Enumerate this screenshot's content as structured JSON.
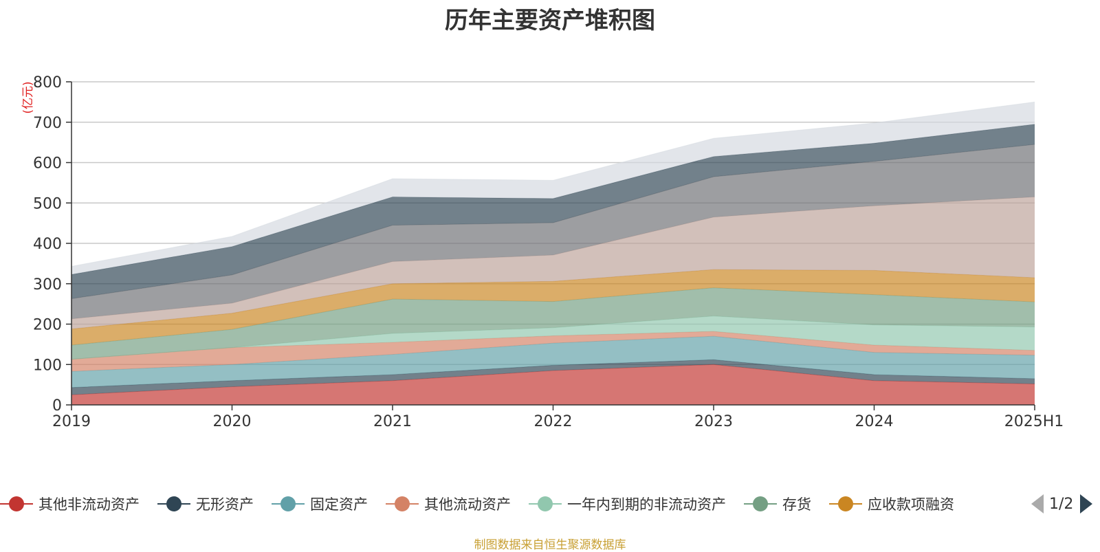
{
  "chart_data": {
    "type": "area",
    "stacked": true,
    "title": "历年主要资产堆积图",
    "ylabel": "(亿元)",
    "xlabel": "",
    "categories": [
      "2019",
      "2020",
      "2021",
      "2022",
      "2023",
      "2024",
      "2025H1"
    ],
    "y_ticks": [
      "0",
      "100",
      "200",
      "300",
      "400",
      "500",
      "600",
      "700",
      "800"
    ],
    "ylim": [
      0,
      800
    ],
    "grid": true,
    "series": [
      {
        "name": "其他非流动资产",
        "color": "#c23531",
        "values": [
          25,
          45,
          60,
          85,
          100,
          60,
          52
        ]
      },
      {
        "name": "无形资产",
        "color": "#2f4554",
        "values": [
          18,
          15,
          15,
          13,
          12,
          15,
          13
        ]
      },
      {
        "name": "固定资产",
        "color": "#61a0a8",
        "values": [
          40,
          40,
          50,
          55,
          58,
          55,
          58
        ]
      },
      {
        "name": "其他流动资产",
        "color": "#d48265",
        "values": [
          30,
          42,
          30,
          18,
          12,
          18,
          12
        ]
      },
      {
        "name": "一年内到期的非流动资产",
        "color": "#91c7ae",
        "values": [
          0,
          0,
          22,
          20,
          38,
          50,
          58
        ]
      },
      {
        "name": "存货",
        "color": "#749f83",
        "values": [
          35,
          45,
          85,
          65,
          70,
          75,
          62
        ]
      },
      {
        "name": "应收款项融资",
        "color": "#ca8622",
        "values": [
          40,
          40,
          38,
          50,
          45,
          60,
          60
        ]
      },
      {
        "name": "",
        "color": "#bda29a",
        "values": [
          25,
          25,
          55,
          65,
          130,
          160,
          200
        ]
      },
      {
        "name": "",
        "color": "#6e7074",
        "values": [
          50,
          70,
          90,
          80,
          100,
          110,
          130
        ]
      },
      {
        "name": "",
        "color": "#2f4554",
        "values": [
          60,
          70,
          70,
          60,
          50,
          45,
          50
        ]
      },
      {
        "name": "",
        "color": "#d4d9e0",
        "values": [
          20,
          25,
          45,
          45,
          45,
          50,
          55
        ]
      }
    ]
  },
  "legend": {
    "items": [
      {
        "label": "其他非流动资产",
        "color": "#c23531"
      },
      {
        "label": "无形资产",
        "color": "#2f4554"
      },
      {
        "label": "固定资产",
        "color": "#61a0a8"
      },
      {
        "label": "其他流动资产",
        "color": "#d48265"
      },
      {
        "label": "一年内到期的非流动资产",
        "color": "#91c7ae"
      },
      {
        "label": "存货",
        "color": "#749f83"
      },
      {
        "label": "应收款项融资",
        "color": "#ca8622"
      }
    ],
    "page": "1/2"
  },
  "source": "制图数据来自恒生聚源数据库"
}
